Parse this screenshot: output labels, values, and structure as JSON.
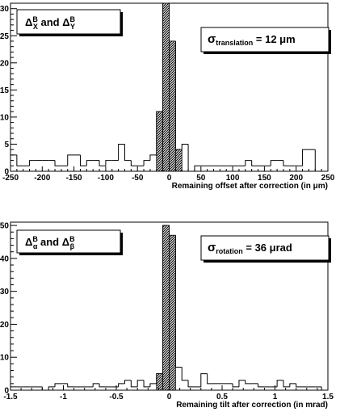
{
  "chart_data": [
    {
      "type": "bar",
      "label_box": "ΔXB and ΔYB",
      "label_box_parts": {
        "delta1": "Δ",
        "sup1": "B",
        "sub1": "X",
        "mid": " and ",
        "delta2": "Δ",
        "sup2": "B",
        "sub2": "Y"
      },
      "stat_box": {
        "symbol": "σ",
        "subscript": "translation",
        "text": " = 12 μm"
      },
      "xlabel": "Remaining offset after correction (in μm)",
      "ylabel": "",
      "xlim": [
        -250,
        250
      ],
      "ylim": [
        0,
        31
      ],
      "xticks": [
        "-250",
        "-200",
        "-150",
        "-100",
        "-50",
        "0",
        "50",
        "100",
        "150",
        "200",
        "250"
      ],
      "yticks": [
        "0",
        "5",
        "10",
        "15",
        "20",
        "25",
        "30"
      ],
      "bin_width": 10,
      "series": [
        {
          "x": [
            -245,
            -235,
            -225,
            -215,
            -205,
            -195,
            -185,
            -175,
            -165,
            -155,
            -145,
            -135,
            -125,
            -115,
            -105,
            -95,
            -85,
            -75,
            -65,
            -55,
            -45,
            -35,
            -25,
            -15,
            -5,
            5,
            15,
            25,
            35,
            45,
            55,
            65,
            75,
            85,
            95,
            105,
            115,
            125,
            135,
            145,
            155,
            165,
            175,
            185,
            195,
            205,
            215,
            225,
            235,
            245
          ],
          "values": [
            3,
            1,
            1,
            2,
            2,
            2,
            2,
            1,
            1,
            3,
            3,
            1,
            2,
            2,
            1,
            2,
            2,
            5,
            2,
            1,
            1,
            2,
            3,
            11,
            31,
            24,
            4,
            5,
            0,
            1,
            1,
            1,
            1,
            1,
            1,
            1,
            1,
            2,
            1,
            1,
            1,
            2,
            2,
            1,
            1,
            1,
            4,
            4,
            0,
            0
          ],
          "style": "outline"
        },
        {
          "x": [
            -45,
            -35,
            -25,
            -15,
            -5,
            5,
            15,
            25,
            35
          ],
          "values": [
            0,
            0,
            0,
            11,
            31,
            24,
            4,
            0,
            0
          ],
          "style": "hatched"
        }
      ]
    },
    {
      "type": "bar",
      "label_box": "ΔαB and ΔβB",
      "label_box_parts": {
        "delta1": "Δ",
        "sup1": "B",
        "sub1": "α",
        "mid": " and ",
        "delta2": "Δ",
        "sup2": "B",
        "sub2": "β"
      },
      "stat_box": {
        "symbol": "σ",
        "subscript": "rotation",
        "text": " = 36 μrad"
      },
      "xlabel": "Remaining tilt after correction (in mrad)",
      "ylabel": "",
      "xlim": [
        -1.5,
        1.5
      ],
      "ylim": [
        0,
        51
      ],
      "xticks": [
        "-1.5",
        "-1",
        "-0.5",
        "0",
        "0.5",
        "1",
        "1.5"
      ],
      "yticks": [
        "0",
        "10",
        "20",
        "30",
        "40",
        "50"
      ],
      "bin_width": 0.06,
      "series": [
        {
          "x": [
            -1.47,
            -1.41,
            -1.35,
            -1.29,
            -1.23,
            -1.17,
            -1.11,
            -1.05,
            -0.99,
            -0.93,
            -0.87,
            -0.81,
            -0.75,
            -0.69,
            -0.63,
            -0.57,
            -0.51,
            -0.45,
            -0.39,
            -0.33,
            -0.27,
            -0.21,
            -0.15,
            -0.09,
            -0.03,
            0.03,
            0.09,
            0.15,
            0.21,
            0.27,
            0.33,
            0.39,
            0.45,
            0.51,
            0.57,
            0.63,
            0.69,
            0.75,
            0.81,
            0.87,
            0.93,
            0.99,
            1.05,
            1.11,
            1.17,
            1.23,
            1.29,
            1.35,
            1.41,
            1.47
          ],
          "values": [
            1,
            1,
            1,
            1,
            1,
            0,
            1,
            2,
            2,
            1,
            1,
            1,
            1,
            2,
            1,
            1,
            1,
            2,
            3,
            1,
            3,
            1,
            2,
            5,
            50,
            47,
            7,
            3,
            1,
            1,
            5,
            2,
            2,
            2,
            2,
            1,
            3,
            2,
            2,
            1,
            1,
            1,
            3,
            1,
            2,
            1,
            1,
            1,
            1,
            0
          ],
          "style": "outline"
        },
        {
          "x": [
            -0.15,
            -0.09,
            -0.03,
            0.03,
            0.09,
            0.15
          ],
          "values": [
            0,
            5,
            50,
            47,
            0,
            0
          ],
          "style": "hatched"
        }
      ]
    }
  ]
}
